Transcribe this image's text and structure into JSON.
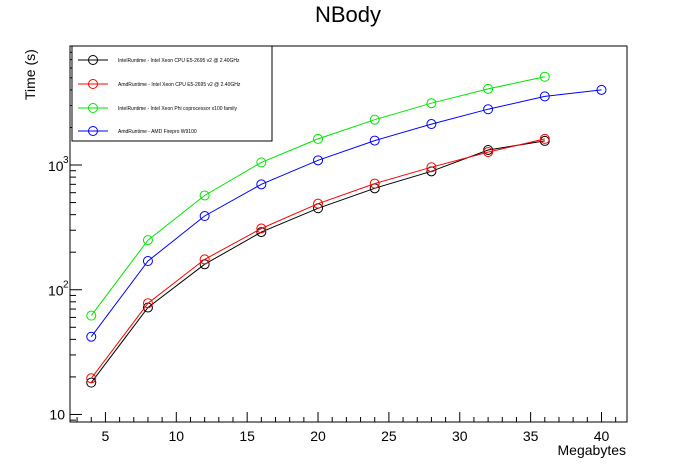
{
  "chart_data": {
    "type": "line",
    "title": "NBody",
    "xlabel": "Megabytes",
    "ylabel": "Time (s)",
    "xlim": [
      2.5,
      41.8
    ],
    "ylim": [
      8.7,
      9000
    ],
    "yscale": "log",
    "xticks": [
      5,
      10,
      15,
      20,
      25,
      30,
      35,
      40
    ],
    "yticks": [
      {
        "value": 10,
        "label": "10",
        "base": "",
        "exp": ""
      },
      {
        "value": 100,
        "label": "",
        "base": "10",
        "exp": "2"
      },
      {
        "value": 1000,
        "label": "",
        "base": "10",
        "exp": "3"
      }
    ],
    "grid": false,
    "legend_position": "top-left",
    "series": [
      {
        "name": "IntelRuntime - Intel Xeon CPU E5-2695 v2 @ 2.40GHz",
        "color": "#000000",
        "x": [
          4,
          8,
          12,
          16,
          20,
          24,
          28,
          32,
          36
        ],
        "y": [
          18,
          72,
          160,
          290,
          450,
          650,
          890,
          1320,
          1560
        ]
      },
      {
        "name": "AmdRuntime - Intel Xeon CPU E5-2695 v2 @ 2.40GHz",
        "color": "#ff0000",
        "x": [
          4,
          8,
          12,
          16,
          20,
          24,
          28,
          32,
          36
        ],
        "y": [
          19.5,
          78,
          175,
          310,
          490,
          710,
          960,
          1270,
          1620
        ]
      },
      {
        "name": "IntelRuntime - Intel Xeon Phi coprocessor x100 family",
        "color": "#00e600",
        "x": [
          4,
          8,
          12,
          16,
          20,
          24,
          28,
          32,
          36
        ],
        "y": [
          62,
          250,
          570,
          1050,
          1620,
          2310,
          3130,
          4080,
          5100
        ]
      },
      {
        "name": "AmdRuntime - AMD Firepro W9100",
        "color": "#0000ff",
        "x": [
          4,
          8,
          12,
          16,
          20,
          24,
          28,
          32,
          36,
          40
        ],
        "y": [
          42,
          170,
          390,
          700,
          1090,
          1570,
          2130,
          2800,
          3550,
          4000
        ]
      }
    ]
  }
}
